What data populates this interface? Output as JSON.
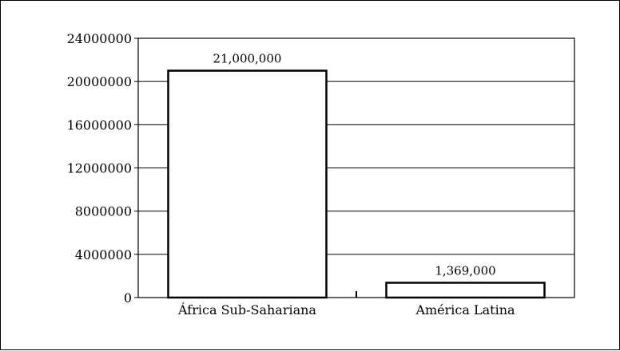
{
  "chart_data": {
    "type": "bar",
    "title": "",
    "xlabel": "",
    "ylabel": "",
    "categories": [
      "África Sub-Sahariana",
      "América Latina"
    ],
    "values": [
      21000000,
      1369000
    ],
    "data_labels": [
      "21,000,000",
      "1,369,000"
    ],
    "ylim": [
      0,
      24000000
    ],
    "yticks": [
      0,
      4000000,
      8000000,
      12000000,
      16000000,
      20000000,
      24000000
    ],
    "ytick_labels": [
      "0",
      "4000000",
      "8000000",
      "12000000",
      "16000000",
      "20000000",
      "24000000"
    ],
    "grid": true,
    "legend": "none",
    "colors": {
      "bar_fill": "#ffffff",
      "bar_stroke": "#000000",
      "grid": "#000000",
      "frame": "#000000"
    }
  }
}
